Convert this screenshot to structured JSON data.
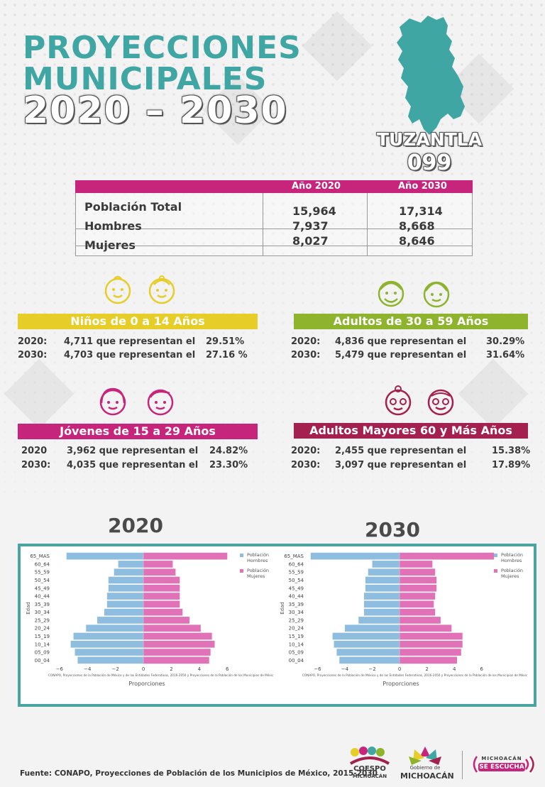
{
  "header": {
    "title_line1": "PROYECCIONES",
    "title_line2": "MUNICIPALES",
    "title_years": "2020 – 2030",
    "municipality": "TUZANTLA",
    "municipality_code": "099",
    "accent_teal": "#3fa6a4",
    "map_icon": "municipality-map-shape"
  },
  "population_table": {
    "col_2020": "Año 2020",
    "col_2030": "Año 2030",
    "rows": [
      {
        "label": "Población Total",
        "v2020": "15,964",
        "v2030": "17,314"
      },
      {
        "label": "Hombres",
        "v2020": "7,937",
        "v2030": "8,668"
      },
      {
        "label": "Mujeres",
        "v2020": "8,027",
        "v2030": "8,646"
      }
    ],
    "header_color": "#c7247b"
  },
  "age_groups": {
    "ninos": {
      "title": "Niños de 0 a 14 Años",
      "color": "#e6cd27",
      "icons": [
        "baby-boy-face-icon",
        "baby-girl-face-icon"
      ],
      "y2020_label": "2020:",
      "y2020_value": "4,711 que representan el",
      "y2020_pct": "29.51%",
      "y2030_label": "2030:",
      "y2030_value": "4,703 que representan el",
      "y2030_pct": "27.16 %"
    },
    "adultos": {
      "title": "Adultos de 30 a 59 Años",
      "color": "#8db42c",
      "icons": [
        "adult-man-face-icon",
        "adult-woman-face-icon"
      ],
      "y2020_label": "2020:",
      "y2020_value": "4,836 que representan el",
      "y2020_pct": "30.29%",
      "y2030_label": "2030:",
      "y2030_value": "5,479 que representan el",
      "y2030_pct": "31.64%"
    },
    "jovenes": {
      "title": "Jóvenes de 15 a 29 Años",
      "color": "#c7247b",
      "icons": [
        "young-woman-face-icon",
        "young-man-face-icon"
      ],
      "y2020_label": "2020",
      "y2020_value": "3,962 que representan el",
      "y2020_pct": "24.82%",
      "y2030_label": "2030:",
      "y2030_value": "4,035 que representan el",
      "y2030_pct": "23.30%"
    },
    "mayores": {
      "title": "Adultos Mayores  60 y Más Años",
      "color": "#a4204e",
      "icons": [
        "elderly-woman-face-icon",
        "elderly-man-face-icon"
      ],
      "y2020_label": "2020:",
      "y2020_value": "2,455 que representan el",
      "y2020_pct": "15.38%",
      "y2030_label": "2030:",
      "y2030_value": "3,097 que representan el",
      "y2030_pct": "17.89%"
    }
  },
  "charts": {
    "year_2020": "2020",
    "year_2030": "2030",
    "frame_color": "#4aa5a1"
  },
  "chart_data": [
    {
      "type": "bar",
      "orientation": "horizontal",
      "title": "2020",
      "xlabel": "Proporciones",
      "ylabel": "Edad",
      "xlim": [
        -6.5,
        7
      ],
      "xticks": [
        "−6",
        "−4",
        "−2",
        "0",
        "2",
        "4",
        "6"
      ],
      "categories": [
        "00_04",
        "05_09",
        "10_14",
        "15_19",
        "20_24",
        "25_29",
        "30_34",
        "35_39",
        "40_44",
        "45_49",
        "50_54",
        "55_59",
        "60_64",
        "65_MAS"
      ],
      "series": [
        {
          "name": "Población Hombres",
          "color": "#8fbde0",
          "values": [
            -4.7,
            -4.9,
            -5.2,
            -5.0,
            -4.1,
            -3.3,
            -2.8,
            -2.6,
            -2.6,
            -2.5,
            -2.5,
            -2.1,
            -1.8,
            -5.5
          ]
        },
        {
          "name": "Población Mujeres",
          "color": "#e272b8",
          "values": [
            4.7,
            4.8,
            5.1,
            4.9,
            4.1,
            3.3,
            2.8,
            2.6,
            2.6,
            2.6,
            2.6,
            2.3,
            2.1,
            6.0
          ]
        }
      ],
      "legend": "top-right",
      "note": "CONAPO, Proyecciones de la Población de México y de las Entidades Federativas, 2016-2050 y Proyecciones de la Población de los Municipios de Méxic"
    },
    {
      "type": "bar",
      "orientation": "horizontal",
      "title": "2030",
      "xlabel": "Proporciones",
      "ylabel": "Edad",
      "xlim": [
        -6.8,
        7
      ],
      "xticks": [
        "−6",
        "−4",
        "−2",
        "0",
        "2",
        "4",
        "6"
      ],
      "categories": [
        "00_04",
        "05_09",
        "10_14",
        "15_19",
        "20_24",
        "25_29",
        "30_34",
        "35_39",
        "40_44",
        "45_49",
        "50_54",
        "55_59",
        "60_64",
        "65_MAS"
      ],
      "series": [
        {
          "name": "Población Hombres",
          "color": "#8fbde0",
          "values": [
            -4.4,
            -4.6,
            -4.8,
            -4.9,
            -4.0,
            -3.0,
            -2.6,
            -2.6,
            -2.6,
            -2.5,
            -2.5,
            -2.3,
            -2.0,
            -6.5
          ]
        },
        {
          "name": "Población Mujeres",
          "color": "#e272b8",
          "values": [
            4.2,
            4.5,
            4.6,
            4.6,
            3.8,
            3.0,
            2.6,
            2.5,
            2.6,
            2.7,
            2.7,
            2.6,
            2.4,
            6.9
          ]
        }
      ],
      "legend": "top-right",
      "note": "CONAPO, Proyecciones de la Población de México y de las Entidades Federativas, 2016-2050 y Proyecciones de la Población de los Municipios de Méxic"
    }
  ],
  "footer": {
    "source": "Fuente: CONAPO, Proyecciones de Población de los Municipios de México, 2015-2030",
    "logo_coespo_1": "COESPO",
    "logo_coespo_2": "MICHOACÁN",
    "logo_gob_1": "Gobierno de",
    "logo_gob_2": "MICHOACÁN",
    "logo_escucha_1": "MICHOACÁN",
    "logo_escucha_2": "SE ESCUCHA"
  }
}
